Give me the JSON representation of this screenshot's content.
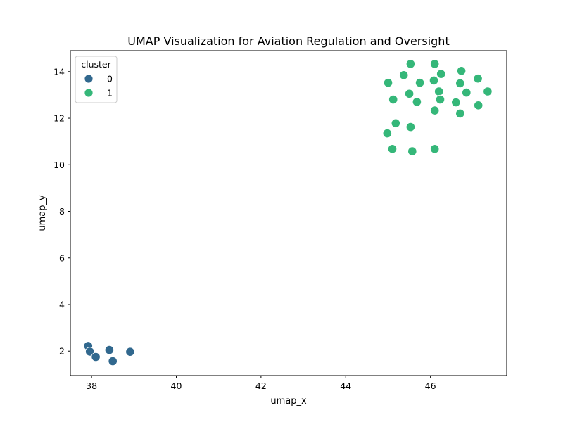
{
  "chart_data": {
    "type": "scatter",
    "title": "UMAP Visualization for Aviation Regulation and Oversight",
    "xlabel": "umap_x",
    "ylabel": "umap_y",
    "xlim": [
      37.5,
      47.8
    ],
    "ylim": [
      0.95,
      14.9
    ],
    "xticks": [
      38,
      40,
      42,
      44,
      46
    ],
    "yticks": [
      2,
      4,
      6,
      8,
      10,
      12,
      14
    ],
    "grid": false,
    "legend": {
      "title": "cluster",
      "placement": "top-left"
    },
    "series": [
      {
        "name": "0",
        "color": "#31688e",
        "points": [
          [
            37.92,
            2.22
          ],
          [
            37.96,
            1.98
          ],
          [
            38.1,
            1.75
          ],
          [
            38.42,
            2.05
          ],
          [
            38.5,
            1.57
          ],
          [
            38.91,
            1.97
          ]
        ]
      },
      {
        "name": "1",
        "color": "#35b779",
        "points": [
          [
            45.53,
            14.33
          ],
          [
            46.1,
            14.33
          ],
          [
            45.37,
            13.85
          ],
          [
            46.25,
            13.9
          ],
          [
            46.73,
            14.03
          ],
          [
            45.0,
            13.52
          ],
          [
            45.75,
            13.52
          ],
          [
            46.08,
            13.62
          ],
          [
            46.7,
            13.5
          ],
          [
            47.12,
            13.7
          ],
          [
            45.5,
            13.05
          ],
          [
            46.2,
            13.15
          ],
          [
            46.85,
            13.1
          ],
          [
            47.35,
            13.15
          ],
          [
            45.12,
            12.8
          ],
          [
            45.68,
            12.7
          ],
          [
            46.23,
            12.8
          ],
          [
            46.6,
            12.68
          ],
          [
            47.13,
            12.55
          ],
          [
            46.1,
            12.33
          ],
          [
            46.7,
            12.2
          ],
          [
            45.18,
            11.78
          ],
          [
            45.53,
            11.62
          ],
          [
            44.98,
            11.35
          ],
          [
            45.1,
            10.68
          ],
          [
            45.57,
            10.58
          ],
          [
            46.1,
            10.68
          ]
        ]
      }
    ]
  }
}
